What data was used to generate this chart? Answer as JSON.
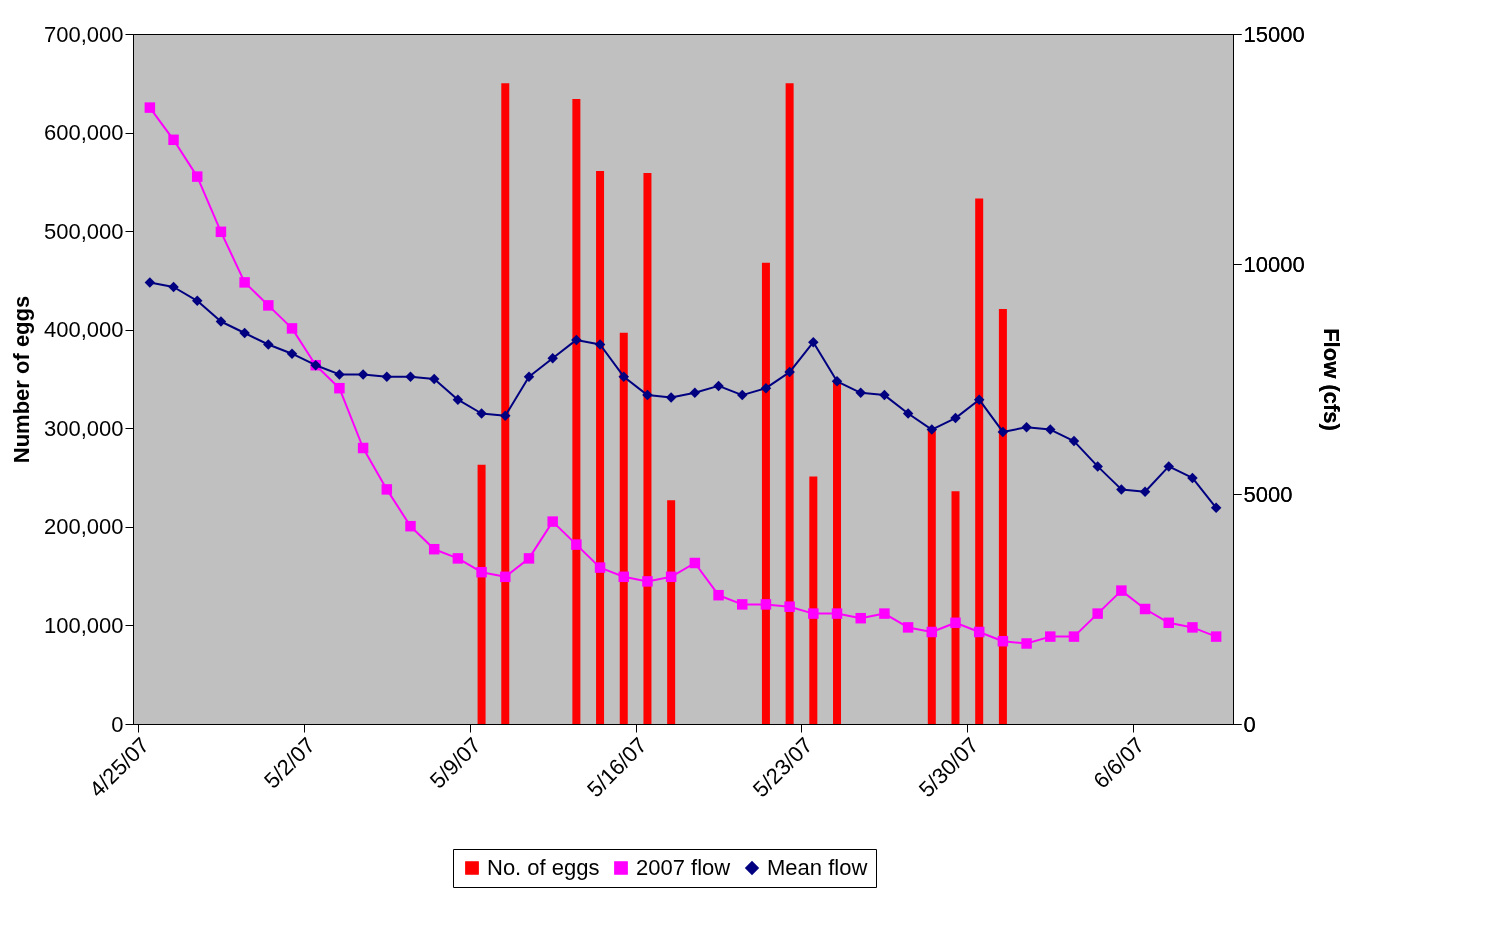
{
  "chart_data": {
    "type": "line",
    "x": [
      "2007-04-25T12:00",
      "2007-04-26T12:00",
      "2007-04-27T12:00",
      "2007-04-28T12:00",
      "2007-04-29T12:00",
      "2007-04-30T12:00",
      "2007-05-01T12:00",
      "2007-05-02T12:00",
      "2007-05-03T12:00",
      "2007-05-04T12:00",
      "2007-05-05T12:00",
      "2007-05-06T12:00",
      "2007-05-07T12:00",
      "2007-05-08T12:00",
      "2007-05-09T12:00",
      "2007-05-10T12:00",
      "2007-05-11T12:00",
      "2007-05-12T12:00",
      "2007-05-13T12:00",
      "2007-05-14T12:00",
      "2007-05-15T12:00",
      "2007-05-16T12:00",
      "2007-05-17T12:00",
      "2007-05-18T12:00",
      "2007-05-19T12:00",
      "2007-05-20T12:00",
      "2007-05-21T12:00",
      "2007-05-22T12:00",
      "2007-05-23T12:00",
      "2007-05-24T12:00",
      "2007-05-25T12:00",
      "2007-05-26T12:00",
      "2007-05-27T12:00",
      "2007-05-28T12:00",
      "2007-05-29T12:00",
      "2007-05-30T12:00",
      "2007-05-31T12:00",
      "2007-06-01T12:00",
      "2007-06-02T12:00",
      "2007-06-03T12:00",
      "2007-06-04T12:00",
      "2007-06-05T12:00",
      "2007-06-06T12:00",
      "2007-06-07T12:00",
      "2007-06-08T12:00",
      "2007-06-09T12:00"
    ],
    "series": [
      {
        "name": "No. of eggs",
        "type": "bar",
        "color": "#ff0000",
        "x": [
          "2007-05-09T12:00",
          "2007-05-10T12:00",
          "2007-05-13T12:00",
          "2007-05-14T12:00",
          "2007-05-15T12:00",
          "2007-05-16T12:00",
          "2007-05-17T12:00",
          "2007-05-21T12:00",
          "2007-05-22T12:00",
          "2007-05-23T12:00",
          "2007-05-24T12:00",
          "2007-05-28T12:00",
          "2007-05-29T12:00",
          "2007-05-30T12:00",
          "2007-05-31T12:00"
        ],
        "values": [
          263000,
          650000,
          634000,
          561000,
          397000,
          559000,
          227000,
          468000,
          650000,
          251000,
          347000,
          298000,
          236000,
          533000,
          421000
        ]
      },
      {
        "name": "2007 flow",
        "axis": "y2",
        "color": "#ff00ff",
        "marker": "square",
        "values": [
          13400,
          12700,
          11900,
          10700,
          9600,
          9100,
          8600,
          7800,
          7300,
          6000,
          5100,
          4300,
          3800,
          3600,
          3300,
          3200,
          3600,
          4400,
          3900,
          3400,
          3200,
          3100,
          3200,
          3500,
          2800,
          2600,
          2600,
          2550,
          2400,
          2400,
          2300,
          2400,
          2100,
          2000,
          2200,
          2000,
          1800,
          1750,
          1900,
          1900,
          2400,
          2900,
          2500,
          2200,
          2100,
          1900
        ]
      },
      {
        "name": "Mean flow",
        "axis": "y2",
        "color": "#000080",
        "marker": "diamond",
        "values": [
          9600,
          9500,
          9200,
          8750,
          8500,
          8250,
          8050,
          7800,
          7600,
          7600,
          7550,
          7550,
          7500,
          7050,
          6750,
          6700,
          7550,
          7950,
          8350,
          8250,
          7550,
          7150,
          7100,
          7200,
          7350,
          7150,
          7300,
          7650,
          8300,
          7450,
          7200,
          7150,
          6750,
          6400,
          6650,
          7050,
          6350,
          6450,
          6400,
          6150,
          5600,
          5100,
          5050,
          5600,
          5350,
          4700
        ]
      }
    ],
    "xlim": [
      "2007-04-25",
      "2007-06-10"
    ],
    "xticks": [
      {
        "value": "2007-04-25",
        "label": "4/25/07"
      },
      {
        "value": "2007-05-02",
        "label": "5/2/07"
      },
      {
        "value": "2007-05-09",
        "label": "5/9/07"
      },
      {
        "value": "2007-05-16",
        "label": "5/16/07"
      },
      {
        "value": "2007-05-23",
        "label": "5/23/07"
      },
      {
        "value": "2007-05-30",
        "label": "5/30/07"
      },
      {
        "value": "2007-06-06",
        "label": "6/6/07"
      }
    ],
    "ylim": [
      0,
      700000
    ],
    "yticks": [
      0,
      {
        "value": 100000,
        "label": "100,000"
      },
      {
        "value": 200000,
        "label": "200,000"
      },
      {
        "value": 300000,
        "label": "300,000"
      },
      {
        "value": 400000,
        "label": "400,000"
      },
      {
        "value": 500000,
        "label": "500,000"
      },
      {
        "value": 600000,
        "label": "600,000"
      },
      {
        "value": 700000,
        "label": "700,000"
      }
    ],
    "y2lim": [
      0,
      15000
    ],
    "y2ticks": [
      0,
      5000,
      10000,
      15000
    ],
    "ylabel": "Number of eggs",
    "y2label": "Flow (cfs)",
    "legend": "bottom",
    "grid": false
  }
}
